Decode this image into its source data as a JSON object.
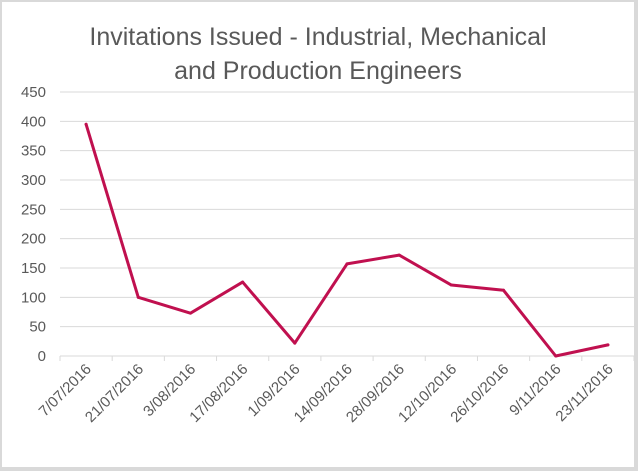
{
  "chart_data": {
    "type": "line",
    "title_line1": "Invitations Issued - Industrial, Mechanical",
    "title_line2": "and Production Engineers",
    "xlabel": "",
    "ylabel": "",
    "categories": [
      "7/07/2016",
      "21/07/2016",
      "3/08/2016",
      "17/08/2016",
      "1/09/2016",
      "14/09/2016",
      "28/09/2016",
      "12/10/2016",
      "26/10/2016",
      "9/11/2016",
      "23/11/2016"
    ],
    "series": [
      {
        "name": "Invitations Issued",
        "color": "#c0104f",
        "values": [
          395,
          100,
          73,
          126,
          22,
          157,
          172,
          121,
          112,
          0,
          19
        ]
      }
    ],
    "ylim": [
      0,
      450
    ],
    "yticks": [
      0,
      50,
      100,
      150,
      200,
      250,
      300,
      350,
      400,
      450
    ],
    "grid": true,
    "legend": "none"
  }
}
